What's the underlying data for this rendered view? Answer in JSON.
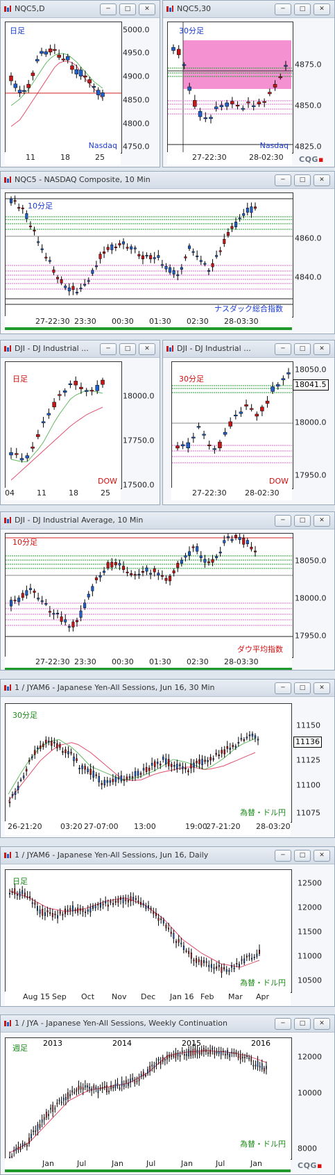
{
  "colors": {
    "up": "#2060c8",
    "down": "#c41818",
    "ma_fast": "#66bb66",
    "ma_slow": "#e05070",
    "support": "#222222",
    "resistance": "#d02020",
    "green_lines": "#22a033",
    "pink_lines": "#e26ad3",
    "highlight": "#f06cc0"
  },
  "windows": [
    {
      "id": "w1",
      "title": "NQC5,D",
      "chart_label": "日足",
      "chart_label_color": "#1a3ad0",
      "corner_label": "Nasdaq",
      "corner_label_color": "#1a3ad0",
      "y_ticks": [
        "5000.0",
        "4950.0",
        "4900.0",
        "4850.0",
        "4800.0",
        "4750.0"
      ],
      "x_ticks": [
        "11",
        "18",
        "25"
      ],
      "buttons": [
        "─",
        "□",
        "✕"
      ]
    },
    {
      "id": "w2",
      "title": "NQC5,30",
      "chart_label": "30分足",
      "chart_label_color": "#1a3ad0",
      "corner_label": "Nasdaq",
      "corner_label_color": "#1a3ad0",
      "y_ticks": [
        "4875.0",
        "4850.0",
        "4825.0"
      ],
      "x_ticks": [
        "27-22:30",
        "28-02:30"
      ],
      "cqg": "CQG",
      "buttons": [
        "─",
        "□",
        "✕"
      ]
    },
    {
      "id": "w3",
      "title": "NQC5 - NASDAQ Composite, 10 Min",
      "chart_label": "10分足",
      "chart_label_color": "#1a3ad0",
      "corner_label": "ナスダック総合指数",
      "corner_label_color": "#1a3ad0",
      "y_ticks": [
        "4860.0",
        "4840.0"
      ],
      "x_ticks": [
        "27-22:30",
        "23:30",
        "00:30",
        "01:30",
        "02:30",
        "28-03:30"
      ],
      "buttons": [
        "─",
        "□",
        "✕"
      ]
    },
    {
      "id": "w4",
      "title": "DJI - DJ Industrial ...",
      "chart_label": "日足",
      "chart_label_color": "#d01010",
      "corner_label": "DOW",
      "corner_label_color": "#d01010",
      "y_ticks": [
        "18000.0",
        "17750.0",
        "17500.0"
      ],
      "x_ticks": [
        "04",
        "11",
        "18",
        "25"
      ],
      "buttons": [
        "─",
        "□",
        "✕"
      ]
    },
    {
      "id": "w5",
      "title": "DJI - DJ Industrial ...",
      "chart_label": "30分足",
      "chart_label_color": "#d01010",
      "corner_label": "DOW",
      "corner_label_color": "#d01010",
      "y_ticks": [
        "18050.0",
        "18000.0",
        "17950.0"
      ],
      "price_box": "18041.5",
      "x_ticks": [
        "27-22:30",
        "28-02:30"
      ],
      "buttons": [
        "─",
        "□",
        "✕"
      ]
    },
    {
      "id": "w6",
      "title": "DJI - DJ Industrial Average, 10 Min",
      "chart_label": "10分足",
      "chart_label_color": "#d01010",
      "corner_label": "ダウ平均指数",
      "corner_label_color": "#d01010",
      "y_ticks": [
        "18050.0",
        "18000.0",
        "17950.0"
      ],
      "x_ticks": [
        "27-22:30",
        "23:30",
        "00:30",
        "01:30",
        "02:30",
        "28-03:30"
      ],
      "buttons": [
        "─",
        "□",
        "✕"
      ]
    },
    {
      "id": "w7",
      "title": "1 / JYAM6 - Japanese Yen-All Sessions, Jun 16, 30 Min",
      "chart_label": "30分足",
      "chart_label_color": "#1a8a1a",
      "corner_label": "為替・ドル円",
      "corner_label_color": "#1a8a1a",
      "y_ticks": [
        "11150",
        "11125",
        "11100",
        "11075"
      ],
      "price_box": "11136",
      "x_ticks": [
        "26-21:20",
        "03:20",
        "27-07:00",
        "13:00",
        "19:00",
        "27-21:20",
        "28-03:20"
      ],
      "buttons": [
        "─",
        "□",
        "✕"
      ]
    },
    {
      "id": "w8",
      "title": "1 / JYAM6 - Japanese Yen-All Sessions, Jun 16, Daily",
      "chart_label": "日足",
      "chart_label_color": "#1a8a1a",
      "corner_label": "為替・ドル円",
      "corner_label_color": "#1a8a1a",
      "y_ticks": [
        "12500",
        "12000",
        "11500",
        "11000",
        "10500"
      ],
      "x_ticks": [
        "Aug 15",
        "Sep",
        "Oct",
        "Nov",
        "Dec",
        "Jan 16",
        "Feb",
        "Mar",
        "Apr"
      ],
      "buttons": [
        "─",
        "□",
        "✕"
      ]
    },
    {
      "id": "w9",
      "title": "1 / JYA - Japanese Yen-All Sessions, Weekly Continuation",
      "chart_label": "週足",
      "chart_label_color": "#1a8a1a",
      "corner_label": "為替・ドル円",
      "corner_label_color": "#1a8a1a",
      "y_ticks": [
        "12000",
        "10000",
        "8000"
      ],
      "x_ticks_top": [
        "2013",
        "2014",
        "2015",
        "2016"
      ],
      "x_ticks": [
        "Jan",
        "Jul",
        "Jan",
        "Jul",
        "Jan",
        "Jul",
        "Jan"
      ],
      "cqg": "CQG",
      "buttons": [
        "─",
        "□",
        "✕"
      ]
    }
  ]
}
